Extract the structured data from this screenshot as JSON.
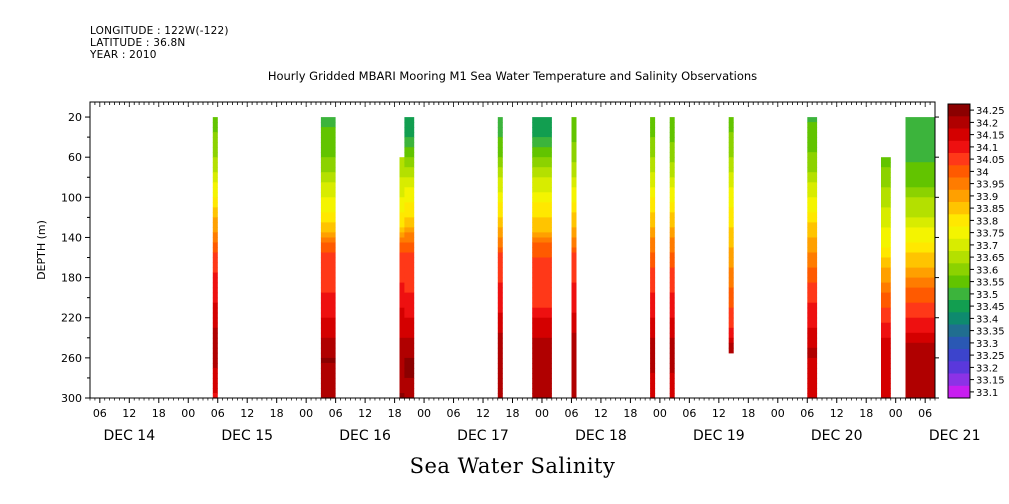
{
  "header": {
    "longitude": "LONGITUDE : 122W(-122)",
    "latitude": "LATITUDE : 36.8N",
    "year": "YEAR : 2010"
  },
  "title": "Hourly Gridded MBARI Mooring M1 Sea Water Temperature and Salinity Observations",
  "bottom_title": "Sea Water Salinity",
  "chart_data": {
    "type": "heatmap",
    "title": "Hourly Gridded MBARI Mooring M1 Sea Water Temperature and Salinity Observations",
    "xlabel": "",
    "ylabel": "DEPTH (m)",
    "variable": "Sea Water Salinity",
    "ylim": [
      300,
      5
    ],
    "yticks": [
      20,
      60,
      100,
      140,
      180,
      220,
      260,
      300
    ],
    "x_hour_ticks": [
      "06",
      "12",
      "18",
      "00",
      "06",
      "12",
      "18",
      "00",
      "06",
      "12",
      "18",
      "00",
      "06",
      "12",
      "18",
      "00",
      "06",
      "12",
      "18",
      "00",
      "06",
      "12",
      "18",
      "00",
      "06",
      "12",
      "18",
      "00",
      "06"
    ],
    "x_date_labels": [
      "DEC 14",
      "DEC 15",
      "DEC 16",
      "DEC 17",
      "DEC 18",
      "DEC 19",
      "DEC 20",
      "DEC 21"
    ],
    "colorbar": {
      "levels": [
        "34.25",
        "34.2",
        "34.15",
        "34.1",
        "34.05",
        "34",
        "33.95",
        "33.9",
        "33.85",
        "33.8",
        "33.75",
        "33.7",
        "33.65",
        "33.6",
        "33.55",
        "33.5",
        "33.45",
        "33.4",
        "33.35",
        "33.3",
        "33.25",
        "33.2",
        "33.15",
        "33.1"
      ],
      "colors": [
        "#8b0000",
        "#b00000",
        "#d40000",
        "#ee1010",
        "#ff3818",
        "#ff5a00",
        "#ff7c00",
        "#ffa000",
        "#ffc400",
        "#ffe800",
        "#f4f400",
        "#d8ec00",
        "#b4e000",
        "#8cd200",
        "#62c400",
        "#3cb43c",
        "#129e50",
        "#0e8a6e",
        "#206e90",
        "#2a58b4",
        "#3c44cc",
        "#5a38dc",
        "#8c32e6",
        "#c81ef0"
      ]
    },
    "columns": [
      {
        "day": "DEC 15",
        "time": "05-06h",
        "top_depth": 20,
        "profile": [
          [
            20,
            33.55
          ],
          [
            60,
            33.62
          ],
          [
            100,
            33.78
          ],
          [
            140,
            33.95
          ],
          [
            160,
            34.05
          ],
          [
            220,
            34.15
          ],
          [
            250,
            34.22
          ],
          [
            280,
            34.15
          ],
          [
            300,
            34.12
          ]
        ]
      },
      {
        "day": "DEC 16",
        "time": "03-06h",
        "top_depth": 20,
        "profile": [
          [
            20,
            33.5
          ],
          [
            60,
            33.58
          ],
          [
            100,
            33.72
          ],
          [
            130,
            33.85
          ],
          [
            150,
            34.02
          ],
          [
            200,
            34.08
          ],
          [
            230,
            34.15
          ],
          [
            260,
            34.23
          ],
          [
            300,
            34.18
          ]
        ]
      },
      {
        "day": "DEC 16",
        "time": "19h",
        "top_depth": 60,
        "profile": [
          [
            60,
            33.62
          ],
          [
            100,
            33.72
          ],
          [
            130,
            33.82
          ],
          [
            150,
            34.02
          ],
          [
            200,
            34.1
          ],
          [
            240,
            34.18
          ],
          [
            300,
            34.23
          ]
        ]
      },
      {
        "day": "DEC 16-17",
        "time": "20-22h",
        "top_depth": 20,
        "profile": [
          [
            20,
            33.42
          ],
          [
            35,
            33.45
          ],
          [
            60,
            33.58
          ],
          [
            100,
            33.76
          ],
          [
            120,
            33.82
          ],
          [
            150,
            34.02
          ],
          [
            200,
            34.08
          ],
          [
            230,
            34.15
          ],
          [
            260,
            34.23
          ],
          [
            300,
            34.22
          ]
        ]
      },
      {
        "day": "DEC 17",
        "time": "15-16h",
        "top_depth": 20,
        "profile": [
          [
            20,
            33.48
          ],
          [
            60,
            33.58
          ],
          [
            100,
            33.75
          ],
          [
            140,
            33.92
          ],
          [
            160,
            34.04
          ],
          [
            220,
            34.13
          ],
          [
            250,
            34.22
          ],
          [
            300,
            34.18
          ]
        ]
      },
      {
        "day": "DEC 17-18",
        "time": "22-02h",
        "top_depth": 20,
        "profile": [
          [
            20,
            33.42
          ],
          [
            40,
            33.48
          ],
          [
            60,
            33.58
          ],
          [
            100,
            33.75
          ],
          [
            130,
            33.85
          ],
          [
            150,
            34.02
          ],
          [
            200,
            34.05
          ],
          [
            230,
            34.15
          ],
          [
            260,
            34.22
          ],
          [
            300,
            34.2
          ]
        ]
      },
      {
        "day": "DEC 18",
        "time": "06-07h",
        "top_depth": 20,
        "profile": [
          [
            20,
            33.52
          ],
          [
            60,
            33.6
          ],
          [
            100,
            33.76
          ],
          [
            140,
            33.92
          ],
          [
            160,
            34.04
          ],
          [
            220,
            34.13
          ],
          [
            250,
            34.22
          ],
          [
            300,
            34.18
          ]
        ]
      },
      {
        "day": "DEC 18",
        "time": "22-23h",
        "top_depth": 20,
        "profile": [
          [
            20,
            33.53
          ],
          [
            60,
            33.62
          ],
          [
            100,
            33.77
          ],
          [
            140,
            33.92
          ],
          [
            170,
            34.02
          ],
          [
            220,
            34.12
          ],
          [
            250,
            34.2
          ],
          [
            300,
            34.15
          ]
        ]
      },
      {
        "day": "DEC 19",
        "time": "02-03h",
        "top_depth": 20,
        "profile": [
          [
            20,
            33.52
          ],
          [
            60,
            33.6
          ],
          [
            100,
            33.76
          ],
          [
            140,
            33.92
          ],
          [
            170,
            34.03
          ],
          [
            220,
            34.12
          ],
          [
            250,
            34.2
          ],
          [
            300,
            34.15
          ]
        ]
      },
      {
        "day": "DEC 19",
        "time": "14-15h",
        "top_depth": 20,
        "bottom_depth": 252,
        "profile": [
          [
            20,
            33.55
          ],
          [
            60,
            33.62
          ],
          [
            100,
            33.75
          ],
          [
            140,
            33.85
          ],
          [
            180,
            33.95
          ],
          [
            230,
            34.08
          ],
          [
            252,
            34.2
          ]
        ]
      },
      {
        "day": "DEC 20",
        "time": "06-08h",
        "top_depth": 20,
        "profile": [
          [
            20,
            33.52
          ],
          [
            60,
            33.58
          ],
          [
            100,
            33.72
          ],
          [
            140,
            33.88
          ],
          [
            170,
            33.98
          ],
          [
            200,
            34.06
          ],
          [
            230,
            34.13
          ],
          [
            250,
            34.18
          ],
          [
            300,
            34.15
          ]
        ]
      },
      {
        "day": "DEC 20",
        "time": "21-23h",
        "top_depth": 60,
        "profile": [
          [
            60,
            33.55
          ],
          [
            100,
            33.65
          ],
          [
            150,
            33.78
          ],
          [
            190,
            33.95
          ],
          [
            220,
            34.05
          ],
          [
            240,
            34.13
          ],
          [
            300,
            34.15
          ]
        ]
      },
      {
        "day": "DEC 21",
        "time": "02-08h",
        "top_depth": 20,
        "profile": [
          [
            20,
            33.5
          ],
          [
            50,
            33.5
          ],
          [
            80,
            33.55
          ],
          [
            110,
            33.65
          ],
          [
            140,
            33.75
          ],
          [
            170,
            33.88
          ],
          [
            195,
            34.0
          ],
          [
            220,
            34.08
          ],
          [
            240,
            34.15
          ],
          [
            260,
            34.22
          ],
          [
            300,
            34.2
          ]
        ]
      }
    ]
  }
}
